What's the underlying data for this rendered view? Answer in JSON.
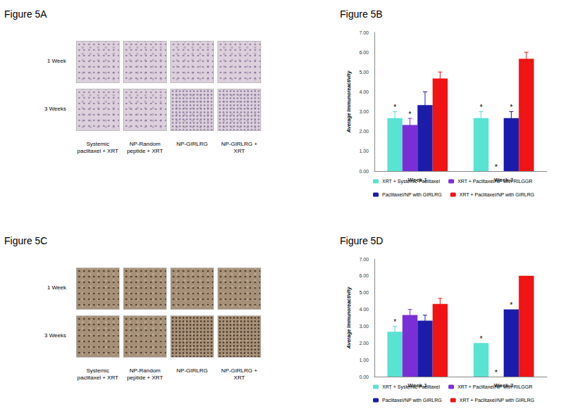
{
  "image_panels": [
    {
      "title": "Figure 5A",
      "rows": [
        "1 Week",
        "3 Weeks"
      ],
      "columns": [
        "Systemic paclitaxel + XRT",
        "NP-Random peptide + XRT",
        "NP-GIRLRG",
        "NP-GIRLRG + XRT"
      ]
    },
    {
      "title": "Figure 5C",
      "rows": [
        "1 Week",
        "3 Weeks"
      ],
      "columns": [
        "Systemic paclitaxel + XRT",
        "NP-Random peptide + XRT",
        "NP-GIRLRG",
        "NP-GIRLRG + XRT"
      ]
    }
  ],
  "chart_data": [
    {
      "type": "bar",
      "title": "Figure 5B",
      "ylabel": "Average Immunoreactivity",
      "categories": [
        "Week 1",
        "Week 3"
      ],
      "ylim": [
        0,
        7
      ],
      "yticks": [
        {
          "value": 0,
          "label": "0.00"
        },
        {
          "value": 1,
          "label": "1.00"
        },
        {
          "value": 2,
          "label": "2.00"
        },
        {
          "value": 3,
          "label": "3.00"
        },
        {
          "value": 4,
          "label": "4.00"
        },
        {
          "value": 5,
          "label": "5.00"
        },
        {
          "value": 6,
          "label": "6.00"
        },
        {
          "value": 7,
          "label": "7.00"
        }
      ],
      "grid": false,
      "legend": "bottom",
      "series": [
        {
          "name": "XRT + Systemic Paclitaxel",
          "color": "#59e3d3",
          "values": [
            2.67,
            2.67
          ],
          "errors": [
            0.33,
            0.33
          ],
          "significance": [
            "*",
            "*"
          ]
        },
        {
          "name": "XRT + Paclitaxel/NP with RILGGR",
          "color": "#7a2fd6",
          "values": [
            2.33,
            0
          ],
          "errors": [
            0.33,
            0
          ],
          "significance": [
            "*",
            "*"
          ]
        },
        {
          "name": "Paclitaxel/NP with GIRLRG",
          "color": "#1c1caa",
          "values": [
            3.33,
            2.67
          ],
          "errors": [
            0.67,
            0.33
          ],
          "significance": [
            null,
            "*"
          ]
        },
        {
          "name": "XRT + Paclitaxel/NP with GIRLRG",
          "color": "#f01414",
          "values": [
            4.67,
            5.67
          ],
          "errors": [
            0.33,
            0.33
          ],
          "significance": [
            null,
            null
          ]
        }
      ]
    },
    {
      "type": "bar",
      "title": "Figure 5D",
      "ylabel": "Average Immunoreactivity",
      "categories": [
        "Week 1",
        "Week 3"
      ],
      "ylim": [
        0,
        7
      ],
      "yticks": [
        {
          "value": 0,
          "label": "0.00"
        },
        {
          "value": 1,
          "label": "1.00"
        },
        {
          "value": 2,
          "label": "2.00"
        },
        {
          "value": 3,
          "label": "3.00"
        },
        {
          "value": 4,
          "label": "4.00"
        },
        {
          "value": 5,
          "label": "5.00"
        },
        {
          "value": 6,
          "label": "6.00"
        },
        {
          "value": 7,
          "label": "7.00"
        }
      ],
      "grid": false,
      "legend": "bottom",
      "series": [
        {
          "name": "XRT + Systemic Paclitaxel",
          "color": "#59e3d3",
          "values": [
            2.67,
            2.0
          ],
          "errors": [
            0.33,
            0
          ],
          "significance": [
            "*",
            "*"
          ]
        },
        {
          "name": "XRT + Paclitaxel/NP with RILGGR",
          "color": "#7a2fd6",
          "values": [
            3.67,
            0
          ],
          "errors": [
            0.33,
            0
          ],
          "significance": [
            null,
            "*"
          ]
        },
        {
          "name": "Paclitaxel/NP with GIRLRG",
          "color": "#1c1caa",
          "values": [
            3.33,
            4.0
          ],
          "errors": [
            0.33,
            0
          ],
          "significance": [
            null,
            "*"
          ]
        },
        {
          "name": "XRT + Paclitaxel/NP with GIRLRG",
          "color": "#f01414",
          "values": [
            4.33,
            6.0
          ],
          "errors": [
            0.33,
            0
          ],
          "significance": [
            null,
            null
          ]
        }
      ]
    }
  ]
}
